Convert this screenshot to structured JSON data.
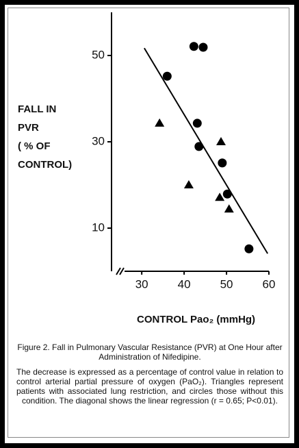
{
  "chart_data": {
    "type": "scatter",
    "ylabel_lines": [
      "FALL IN",
      "PVR",
      "( % OF",
      "CONTROL)"
    ],
    "xlabel": "CONTROL  Pao₂  (mmHg)",
    "xlim": [
      24,
      60
    ],
    "xticks": [
      30,
      40,
      50,
      60
    ],
    "ylim": [
      0,
      60
    ],
    "yticks": [
      10,
      30,
      50
    ],
    "series": [
      {
        "marker": "circle",
        "color": "#000000",
        "x": [
          42.3,
          44.5,
          36.0,
          43.1,
          43.5,
          49.0,
          50.2,
          55.3
        ],
        "values": [
          52.1,
          51.9,
          45.2,
          34.3,
          28.9,
          25.1,
          17.9,
          5.2
        ]
      },
      {
        "marker": "triangle",
        "color": "#000000",
        "x": [
          34.2,
          48.7,
          41.1,
          48.4,
          50.6
        ],
        "values": [
          34.3,
          30.0,
          20.0,
          17.1,
          14.4
        ]
      }
    ],
    "fit": {
      "color": "#000000",
      "x": [
        30.6,
        59.7
      ],
      "values": [
        51.7,
        4.1
      ]
    },
    "caption_title": "Figure 2. Fall in Pulmonary Vascular Resistance (PVR) at One Hour after Administration of Nifedipine.",
    "caption_body": "The decrease is expressed as a percentage of control value in relation to control arterial partial pressure of oxygen (PaO₂). Triangles represent patients with associated lung restriction, and circles those without this condition. The diagonal shows the linear regression (r = 0.65; P<0.01)."
  }
}
